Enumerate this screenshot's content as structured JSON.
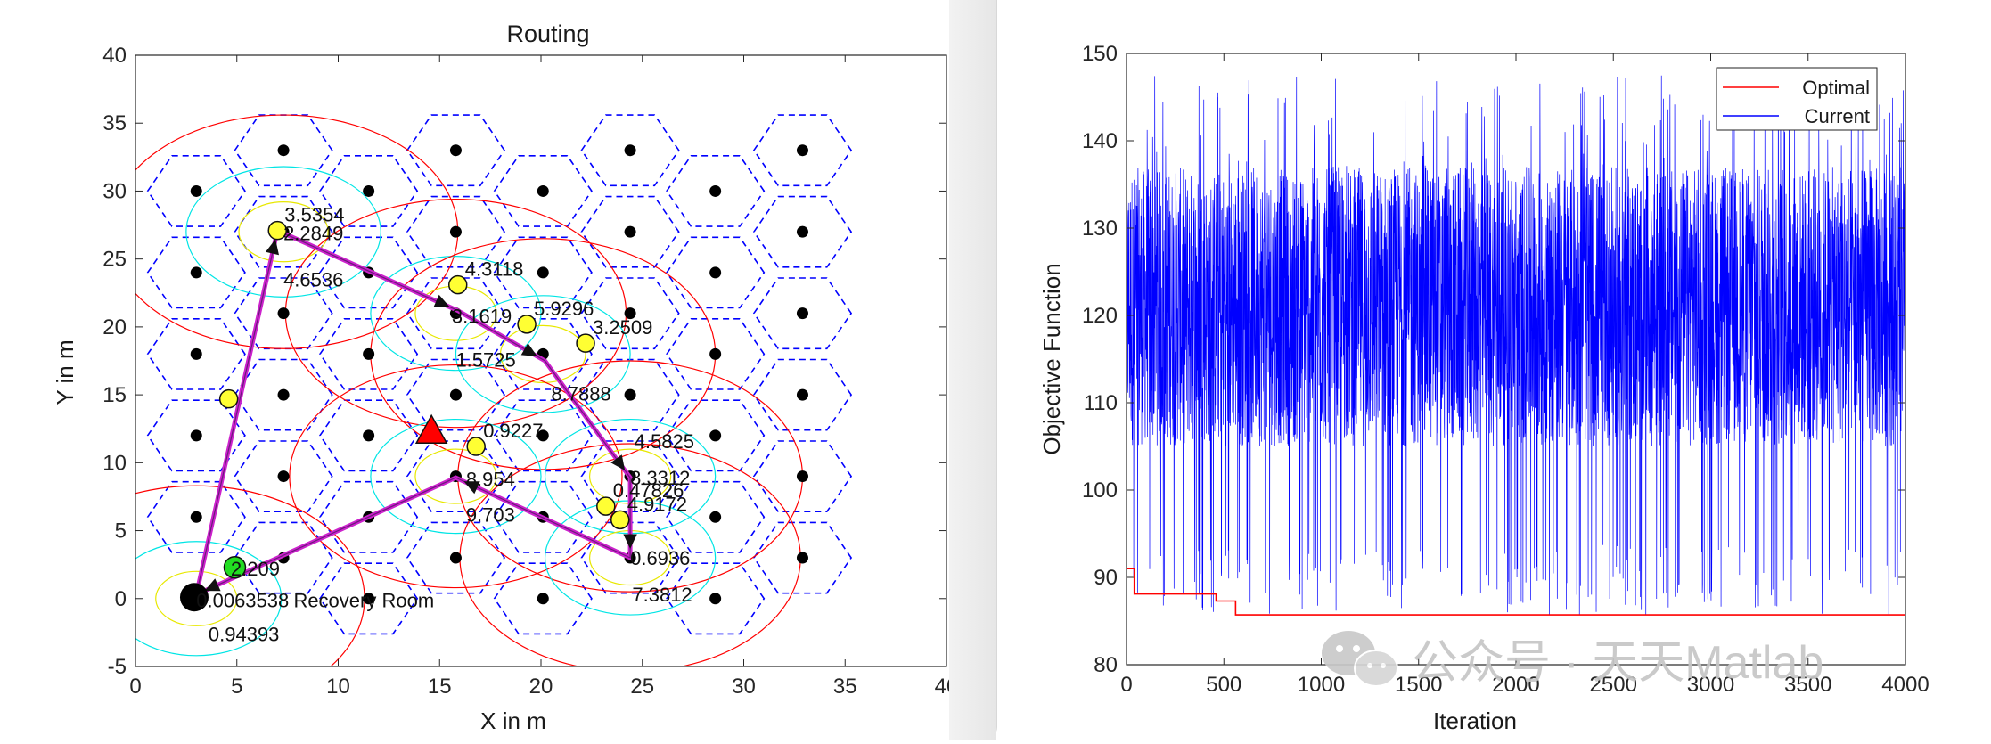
{
  "chart_data": [
    {
      "type": "scatter",
      "title": "Routing",
      "xlabel": "X in m",
      "ylabel": "Y in m",
      "xlim": [
        0,
        40
      ],
      "ylim": [
        -5,
        40
      ],
      "xticks": [
        "0",
        "5",
        "10",
        "15",
        "20",
        "25",
        "30",
        "35",
        "40"
      ],
      "yticks": [
        "-5",
        "0",
        "5",
        "10",
        "15",
        "20",
        "25",
        "30",
        "35",
        "40"
      ],
      "grid": false,
      "hex_radius": 2.4,
      "colors": {
        "hex": "#0000ff",
        "sensor": "#000000",
        "node": "#ffff33",
        "sink": "#22dd22",
        "route": "#cc22cc",
        "circle_large": "#ff0000",
        "circle_mid": "#00e5e5",
        "circle_small": "#e8e800",
        "target": "#ff0000"
      },
      "sensor_points": [
        {
          "x": 3,
          "y": 30
        },
        {
          "x": 3,
          "y": 24
        },
        {
          "x": 3,
          "y": 18
        },
        {
          "x": 3,
          "y": 12
        },
        {
          "x": 3,
          "y": 6
        },
        {
          "x": 7.3,
          "y": 33
        },
        {
          "x": 7.3,
          "y": 27
        },
        {
          "x": 7.3,
          "y": 21
        },
        {
          "x": 7.3,
          "y": 15
        },
        {
          "x": 7.3,
          "y": 9
        },
        {
          "x": 7.3,
          "y": 3
        },
        {
          "x": 11.5,
          "y": 30
        },
        {
          "x": 11.5,
          "y": 24
        },
        {
          "x": 11.5,
          "y": 18
        },
        {
          "x": 11.5,
          "y": 12
        },
        {
          "x": 11.5,
          "y": 6
        },
        {
          "x": 11.5,
          "y": 0
        },
        {
          "x": 15.8,
          "y": 33
        },
        {
          "x": 15.8,
          "y": 27
        },
        {
          "x": 15.8,
          "y": 21
        },
        {
          "x": 15.8,
          "y": 15
        },
        {
          "x": 15.8,
          "y": 9
        },
        {
          "x": 15.8,
          "y": 3
        },
        {
          "x": 20.1,
          "y": 30
        },
        {
          "x": 20.1,
          "y": 24
        },
        {
          "x": 20.1,
          "y": 18
        },
        {
          "x": 20.1,
          "y": 12
        },
        {
          "x": 20.1,
          "y": 6
        },
        {
          "x": 20.1,
          "y": 0
        },
        {
          "x": 24.4,
          "y": 33
        },
        {
          "x": 24.4,
          "y": 27
        },
        {
          "x": 24.4,
          "y": 21
        },
        {
          "x": 24.4,
          "y": 15
        },
        {
          "x": 24.4,
          "y": 9
        },
        {
          "x": 24.4,
          "y": 3
        },
        {
          "x": 28.6,
          "y": 30
        },
        {
          "x": 28.6,
          "y": 24
        },
        {
          "x": 28.6,
          "y": 18
        },
        {
          "x": 28.6,
          "y": 12
        },
        {
          "x": 28.6,
          "y": 6
        },
        {
          "x": 28.6,
          "y": 0
        },
        {
          "x": 32.9,
          "y": 33
        },
        {
          "x": 32.9,
          "y": 27
        },
        {
          "x": 32.9,
          "y": 21
        },
        {
          "x": 32.9,
          "y": 15
        },
        {
          "x": 32.9,
          "y": 9
        },
        {
          "x": 32.9,
          "y": 3
        }
      ],
      "nodes": [
        {
          "x": 7.0,
          "y": 27.1,
          "label": "3.5354"
        },
        {
          "x": 15.9,
          "y": 23.1,
          "label": "4.3118"
        },
        {
          "x": 19.3,
          "y": 20.2,
          "label": "5.9296"
        },
        {
          "x": 22.2,
          "y": 18.8,
          "label": "3.2509"
        },
        {
          "x": 4.6,
          "y": 14.7,
          "label": ""
        },
        {
          "x": 16.8,
          "y": 11.2,
          "label": "0.9227"
        },
        {
          "x": 23.2,
          "y": 6.8,
          "label": "0.47826"
        },
        {
          "x": 23.9,
          "y": 5.8,
          "label": "4.9172"
        }
      ],
      "extra_labels": [
        {
          "x": 7.3,
          "y": 26.9,
          "text": "2.2849"
        },
        {
          "x": 7.3,
          "y": 23.5,
          "text": "4.6536"
        },
        {
          "x": 15.6,
          "y": 20.8,
          "text": "3.1619"
        },
        {
          "x": 15.8,
          "y": 17.6,
          "text": "1.5725"
        },
        {
          "x": 20.5,
          "y": 15.1,
          "text": "8.7888"
        },
        {
          "x": 24.6,
          "y": 11.6,
          "text": "4.5825"
        },
        {
          "x": 24.4,
          "y": 8.9,
          "text": "8.3312"
        },
        {
          "x": 16.3,
          "y": 8.8,
          "text": "8.954"
        },
        {
          "x": 16.3,
          "y": 6.2,
          "text": "9.703"
        },
        {
          "x": 24.4,
          "y": 3.0,
          "text": "0.6936"
        },
        {
          "x": 24.5,
          "y": 0.3,
          "text": "7.3812"
        },
        {
          "x": 4.7,
          "y": 2.2,
          "text": "2.209"
        },
        {
          "x": 3.6,
          "y": -2.6,
          "text": "0.94393"
        },
        {
          "x": 3.0,
          "y": -0.1,
          "text": "0.0063538"
        },
        {
          "x": 7.8,
          "y": -0.1,
          "text": "Recovery Room"
        }
      ],
      "sink": {
        "x": 4.9,
        "y": 2.3
      },
      "base_station": {
        "x": 2.9,
        "y": 0.1
      },
      "target": {
        "x": 14.6,
        "y": 12.3
      },
      "route": [
        {
          "x": 3.0,
          "y": 0.3
        },
        {
          "x": 7.0,
          "y": 27.1
        },
        {
          "x": 15.9,
          "y": 21.2
        },
        {
          "x": 20.2,
          "y": 17.5
        },
        {
          "x": 24.4,
          "y": 8.9
        },
        {
          "x": 24.4,
          "y": 3.0
        },
        {
          "x": 15.8,
          "y": 8.9
        },
        {
          "x": 3.0,
          "y": 0.3
        }
      ],
      "circles": [
        {
          "x": 7.3,
          "y": 27.0,
          "r": 8.6,
          "kind": "large"
        },
        {
          "x": 7.3,
          "y": 27.0,
          "r": 4.8,
          "kind": "mid"
        },
        {
          "x": 7.3,
          "y": 27.0,
          "r": 2.2,
          "kind": "small"
        },
        {
          "x": 15.8,
          "y": 21.0,
          "r": 8.4,
          "kind": "large"
        },
        {
          "x": 15.8,
          "y": 21.0,
          "r": 4.2,
          "kind": "mid"
        },
        {
          "x": 15.8,
          "y": 21.0,
          "r": 2.0,
          "kind": "small"
        },
        {
          "x": 20.1,
          "y": 18.0,
          "r": 8.5,
          "kind": "large"
        },
        {
          "x": 20.1,
          "y": 18.0,
          "r": 4.3,
          "kind": "mid"
        },
        {
          "x": 20.1,
          "y": 18.0,
          "r": 2.1,
          "kind": "small"
        },
        {
          "x": 15.8,
          "y": 9.0,
          "r": 8.2,
          "kind": "large"
        },
        {
          "x": 15.8,
          "y": 9.0,
          "r": 4.2,
          "kind": "mid"
        },
        {
          "x": 15.8,
          "y": 9.0,
          "r": 2.0,
          "kind": "small"
        },
        {
          "x": 24.4,
          "y": 9.0,
          "r": 8.5,
          "kind": "large"
        },
        {
          "x": 24.4,
          "y": 9.0,
          "r": 4.2,
          "kind": "mid"
        },
        {
          "x": 24.4,
          "y": 9.0,
          "r": 2.0,
          "kind": "small"
        },
        {
          "x": 24.4,
          "y": 3.0,
          "r": 8.4,
          "kind": "large"
        },
        {
          "x": 24.4,
          "y": 3.0,
          "r": 4.2,
          "kind": "mid"
        },
        {
          "x": 24.4,
          "y": 3.0,
          "r": 2.0,
          "kind": "small"
        },
        {
          "x": 3.0,
          "y": 0.0,
          "r": 8.3,
          "kind": "large"
        },
        {
          "x": 3.0,
          "y": 0.0,
          "r": 4.2,
          "kind": "mid"
        },
        {
          "x": 3.0,
          "y": 0.0,
          "r": 2.0,
          "kind": "small"
        }
      ]
    },
    {
      "type": "line",
      "title": "",
      "xlabel": "Iteration",
      "ylabel": "Objective Function",
      "xlim": [
        0,
        4000
      ],
      "ylim": [
        80,
        150
      ],
      "xticks": [
        "0",
        "500",
        "1000",
        "1500",
        "2000",
        "2500",
        "3000",
        "3500",
        "4000"
      ],
      "yticks": [
        "80",
        "90",
        "100",
        "110",
        "120",
        "130",
        "140",
        "150"
      ],
      "grid": false,
      "legend_placement": "top-right",
      "series": [
        {
          "name": "Optimal",
          "color": "#ff0000",
          "x": [
            0,
            40,
            40,
            460,
            460,
            560,
            560,
            4000
          ],
          "values": [
            91,
            91,
            88.1,
            88.1,
            87.3,
            87.3,
            85.7,
            85.7
          ]
        },
        {
          "name": "Current",
          "color": "#0000ff",
          "points": 4000,
          "min": 85.7,
          "max": 147.5,
          "typical_low": 105,
          "typical_high": 137
        }
      ]
    }
  ],
  "watermark": {
    "text": "公众号 · 天天Matlab",
    "icon": "wechat-icon"
  }
}
